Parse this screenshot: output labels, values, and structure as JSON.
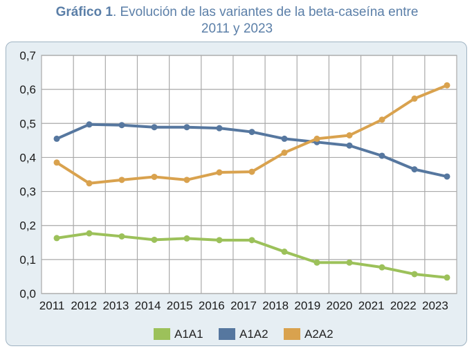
{
  "title": {
    "bold": "Gráfico 1",
    "rest_line1": ". Evolución de las variantes de la beta-caseína entre",
    "line2": "2011 y 2023"
  },
  "colors": {
    "A1A1": "#9cc15a",
    "A1A2": "#56779f",
    "A2A2": "#d9a24e",
    "grid": "#a9a9a9",
    "plot_bg": "#ffffff",
    "frame_bg": "#e6eef3"
  },
  "chart_data": {
    "type": "line",
    "x": [
      "2011",
      "2012",
      "2013",
      "2014",
      "2015",
      "2016",
      "2017",
      "2018",
      "2019",
      "2020",
      "2021",
      "2022",
      "2023"
    ],
    "ylim": [
      0,
      0.7
    ],
    "yticks": [
      "0,0",
      "0,1",
      "0,2",
      "0,3",
      "0,4",
      "0,5",
      "0,6",
      "0,7"
    ],
    "grid": true,
    "legend_position": "bottom",
    "series": [
      {
        "name": "A1A1",
        "color": "#9cc15a",
        "values": [
          0.163,
          0.177,
          0.168,
          0.158,
          0.162,
          0.157,
          0.157,
          0.123,
          0.091,
          0.091,
          0.077,
          0.057,
          0.047
        ]
      },
      {
        "name": "A1A2",
        "color": "#56779f",
        "values": [
          0.455,
          0.497,
          0.495,
          0.489,
          0.489,
          0.486,
          0.475,
          0.455,
          0.445,
          0.435,
          0.405,
          0.365,
          0.344
        ]
      },
      {
        "name": "A2A2",
        "color": "#d9a24e",
        "values": [
          0.385,
          0.324,
          0.334,
          0.343,
          0.334,
          0.356,
          0.358,
          0.414,
          0.455,
          0.465,
          0.511,
          0.573,
          0.612
        ]
      }
    ]
  }
}
